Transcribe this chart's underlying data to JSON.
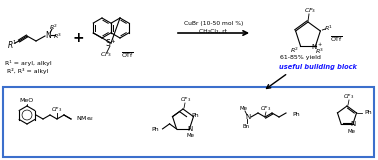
{
  "background_color": "#ffffff",
  "bottom_border_color": "#3b6fcc",
  "building_block_text_color": "#1a1aff",
  "condition_text": "CuBr (10-50 mol %)",
  "condition_text2": "CH₂Cl₂, rt",
  "yield_text": "61-85% yield",
  "building_block_label": "useful building block",
  "r1_label": "R¹ = aryl, alkyl",
  "r2r3_label": "R², R³ = alkyl",
  "figsize": [
    3.78,
    1.6
  ],
  "dpi": 100
}
